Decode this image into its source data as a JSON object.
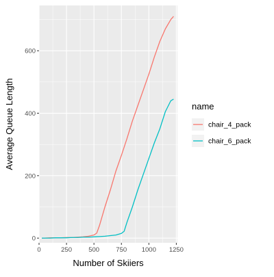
{
  "chart_data": {
    "type": "line",
    "title": "",
    "xlabel": "Number of Skiiers",
    "ylabel": "Average Queue Length",
    "xlim": [
      0,
      1260
    ],
    "ylim": [
      -15,
      745
    ],
    "x_ticks": [
      0,
      250,
      500,
      750,
      1000,
      1250
    ],
    "y_ticks": [
      0,
      200,
      400,
      600
    ],
    "grid": true,
    "background_color": "#EBEBEB",
    "legend": {
      "title": "name",
      "position": "right"
    },
    "series": [
      {
        "name": "chair_4_pack",
        "color": "#F8766D",
        "x": [
          25,
          50,
          100,
          150,
          200,
          250,
          300,
          350,
          400,
          450,
          500,
          525,
          550,
          600,
          650,
          700,
          750,
          800,
          850,
          900,
          950,
          1000,
          1050,
          1100,
          1150,
          1200,
          1225
        ],
        "y": [
          0,
          0,
          1,
          1,
          1,
          2,
          2,
          3,
          4,
          6,
          10,
          16,
          40,
          100,
          155,
          215,
          265,
          318,
          375,
          425,
          475,
          525,
          580,
          630,
          670,
          700,
          710
        ]
      },
      {
        "name": "chair_6_pack",
        "color": "#00BFC4",
        "x": [
          25,
          50,
          100,
          150,
          200,
          250,
          300,
          350,
          400,
          450,
          500,
          550,
          600,
          650,
          700,
          750,
          775,
          800,
          850,
          900,
          950,
          1000,
          1050,
          1100,
          1150,
          1200,
          1225
        ],
        "y": [
          0,
          0,
          0,
          1,
          1,
          1,
          2,
          2,
          3,
          3,
          4,
          5,
          6,
          8,
          10,
          15,
          22,
          50,
          100,
          155,
          205,
          255,
          305,
          350,
          405,
          440,
          445
        ]
      }
    ]
  }
}
